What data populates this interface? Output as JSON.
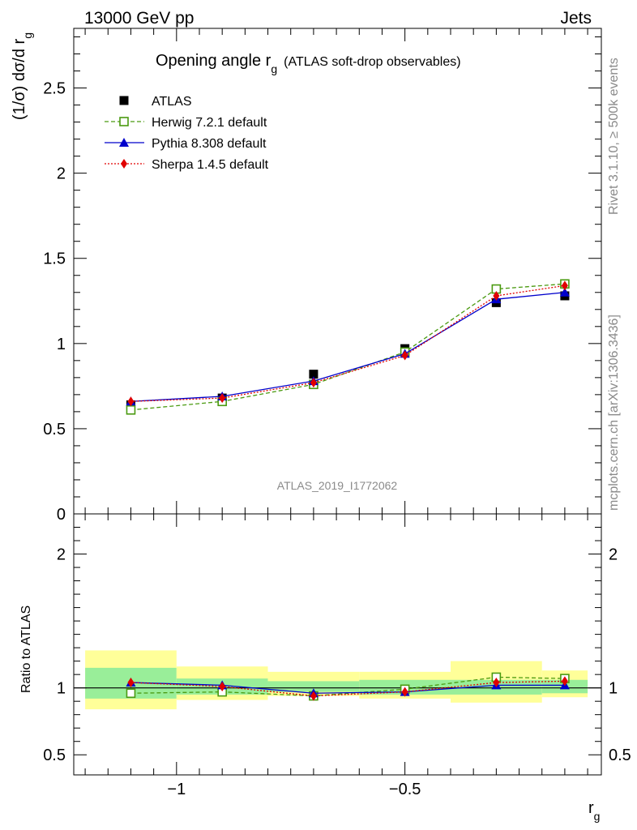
{
  "header": {
    "left": "13000 GeV pp",
    "right": "Jets"
  },
  "side_labels": {
    "rivet": "Rivet 3.1.10, ≥ 500k events",
    "mcplots": "mcplots.cern.ch [arXiv:1306.3436]"
  },
  "watermark": "ATLAS_2019_I1772062",
  "chart_data": [
    {
      "type": "line",
      "panel": "main",
      "title": "Opening angle r",
      "title_sub": "g",
      "title_suffix": "(ATLAS soft-drop observables)",
      "ylabel": "(1/σ) dσ/d r",
      "ylabel_sub": "g",
      "ylim": [
        0,
        2.85
      ],
      "yticks": [
        0,
        0.5,
        1,
        1.5,
        2,
        2.5
      ],
      "ytick_labels": [
        "0",
        "0.5",
        "1",
        "1.5",
        "2",
        "2.5"
      ],
      "xlim": [
        -1.225,
        -0.07
      ],
      "x": [
        -1.1,
        -0.9,
        -0.7,
        -0.5,
        -0.3,
        -0.15
      ],
      "series": [
        {
          "name": "ATLAS",
          "color": "#000000",
          "marker": "square",
          "values": [
            0.64,
            0.68,
            0.82,
            0.97,
            1.24,
            1.28
          ]
        },
        {
          "name": "Herwig 7.2.1 default",
          "color": "#4a9a10",
          "marker": "open-square",
          "dash": "5,3",
          "values": [
            0.61,
            0.66,
            0.76,
            0.95,
            1.32,
            1.35
          ]
        },
        {
          "name": "Pythia 8.308 default",
          "color": "#0000cc",
          "marker": "triangle",
          "dash": "",
          "values": [
            0.66,
            0.69,
            0.78,
            0.94,
            1.26,
            1.3
          ]
        },
        {
          "name": "Sherpa 1.4.5 default",
          "color": "#e00000",
          "marker": "diamond",
          "dash": "2,2",
          "values": [
            0.66,
            0.68,
            0.77,
            0.93,
            1.28,
            1.34
          ]
        }
      ]
    },
    {
      "type": "line",
      "panel": "ratio",
      "ylabel": "Ratio to ATLAS",
      "xlabel": "r",
      "xlabel_sub": "g",
      "ylim": [
        0.35,
        2.3
      ],
      "yticks": [
        0.5,
        1,
        2
      ],
      "ytick_labels": [
        "0.5",
        "1",
        "2"
      ],
      "xticks": [
        -1,
        -0.5
      ],
      "xtick_labels": [
        "−1",
        "−0.5"
      ],
      "xlim": [
        -1.225,
        -0.07
      ],
      "bins": [
        [
          -1.2,
          -1.0
        ],
        [
          -1.0,
          -0.8
        ],
        [
          -0.8,
          -0.6
        ],
        [
          -0.6,
          -0.4
        ],
        [
          -0.4,
          -0.2
        ],
        [
          -0.2,
          -0.1
        ]
      ],
      "band_inner": [
        [
          0.92,
          1.15
        ],
        [
          0.95,
          1.07
        ],
        [
          0.97,
          1.05
        ],
        [
          0.95,
          1.06
        ],
        [
          0.95,
          1.06
        ],
        [
          0.96,
          1.06
        ]
      ],
      "band_outer": [
        [
          0.84,
          1.28
        ],
        [
          0.91,
          1.16
        ],
        [
          0.94,
          1.12
        ],
        [
          0.92,
          1.12
        ],
        [
          0.89,
          1.2
        ],
        [
          0.93,
          1.13
        ]
      ],
      "x": [
        -1.1,
        -0.9,
        -0.7,
        -0.5,
        -0.3,
        -0.15
      ],
      "series": [
        {
          "name": "Herwig 7.2.1 default",
          "color": "#4a9a10",
          "marker": "open-square",
          "dash": "5,3",
          "values": [
            0.96,
            0.97,
            0.94,
            0.99,
            1.08,
            1.07
          ]
        },
        {
          "name": "Pythia 8.308 default",
          "color": "#0000cc",
          "marker": "triangle",
          "dash": "",
          "values": [
            1.04,
            1.02,
            0.96,
            0.97,
            1.02,
            1.02
          ]
        },
        {
          "name": "Sherpa 1.4.5 default",
          "color": "#e00000",
          "marker": "diamond",
          "dash": "2,2",
          "values": [
            1.04,
            1.01,
            0.94,
            0.97,
            1.04,
            1.05
          ]
        }
      ]
    }
  ]
}
